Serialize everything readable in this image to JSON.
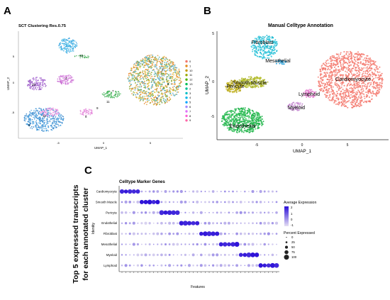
{
  "panel_letters": [
    "A",
    "B",
    "C"
  ],
  "side_title": [
    "Top 5 expressed transcripts",
    "for each annotated cluster"
  ],
  "colors": {
    "cardio_teal": "#52b4a8",
    "cardio_orange": "#e8a33c",
    "cardio_green": "#8aa82a",
    "fibro_blue": "#3aa3e0",
    "pericyte_purple": "#9a5bc4",
    "endo_blue": "#3a8fd4",
    "pink": "#e58adb",
    "green_strip": "#36a84a",
    "ann_cardio": "#f4756a",
    "ann_fibro": "#1fb8cf",
    "ann_meso": "#1f9cd8",
    "ann_smooth": "#a9b32a",
    "ann_pericyte": "#b6a51a",
    "ann_endo": "#21b24b",
    "ann_lymph": "#e070c8",
    "ann_myeloid": "#c48ad0",
    "dot_low": "#d9d3ef",
    "dot_high": "#2c10d8"
  },
  "chart_data": [
    {
      "type": "scatter",
      "title": "SCT Clustering Res.0.75",
      "xlabel": "UMAP_1",
      "ylabel": "UMAP_2",
      "x_ticks": [
        "-5",
        "0",
        "5"
      ],
      "y_ticks": [
        "5",
        "0",
        "-5"
      ],
      "cluster_labels": [
        "13",
        "4",
        "10",
        "5",
        "0",
        "2",
        "1",
        "3",
        "6",
        "7",
        "9",
        "11",
        "8",
        "12"
      ],
      "legend": [
        "0",
        "1",
        "10",
        "11",
        "12",
        "13",
        "2",
        "3",
        "4",
        "5",
        "6",
        "7",
        "8",
        "9"
      ],
      "legend_colors": [
        "#f2766b",
        "#e58b1e",
        "#c49a00",
        "#9aa800",
        "#53b400",
        "#00bc56",
        "#00c094",
        "#00bfc4",
        "#00b6eb",
        "#06a4ff",
        "#a58aff",
        "#df70f8",
        "#fb61d7",
        "#ff66a8"
      ]
    },
    {
      "type": "scatter",
      "title": "Manual Celltype Annotation",
      "xlabel": "UMAP_1",
      "ylabel": "UMAP_2",
      "x_ticks": [
        "-5",
        "0",
        "5"
      ],
      "y_ticks": [
        "5",
        "0",
        "-5"
      ],
      "cluster_labels": [
        "Fibroblast",
        "Mesothelial",
        "Smooth Muscle",
        "Pericyte",
        "Cardiomyocyte",
        "Lymphoid",
        "Myeloid",
        "Endothelial"
      ]
    },
    {
      "type": "dot",
      "title": "Celltype Marker Genes",
      "xlabel": "Features",
      "ylabel": "Identity",
      "identities": [
        "Cardiomyocyte",
        "Smooth Muscle",
        "Pericyte",
        "Endothelial",
        "Fibroblast",
        "Mesothelial",
        "Myeloid",
        "Lymphoid"
      ],
      "genes_per_group": 5,
      "n_features": 40,
      "legend_expression_title": "Average Expression",
      "expression_ticks": [
        "2",
        "1",
        "0",
        "-1"
      ],
      "expression_range": [
        -1,
        2
      ],
      "legend_percent_title": "Percent Expressed",
      "percent_levels": [
        "0",
        "25",
        "50",
        "75",
        "100"
      ]
    }
  ]
}
